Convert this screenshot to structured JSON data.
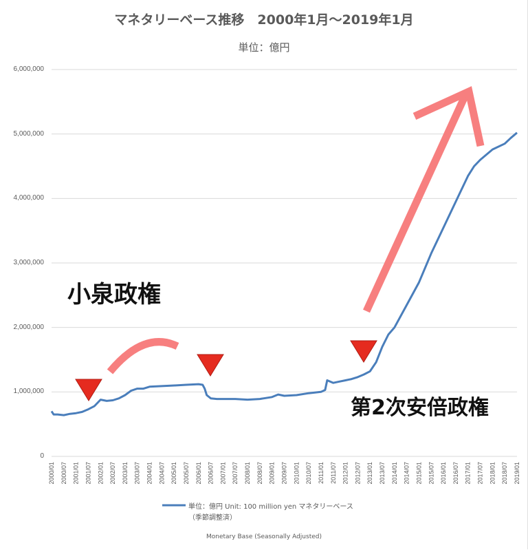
{
  "chart_data": {
    "type": "line",
    "title": "マネタリーベース推移　2000年1月～2019年1月",
    "subtitle": "単位：億円",
    "ylim": [
      0,
      6000000
    ],
    "y_ticks": [
      "0",
      "1,000,000",
      "2,000,000",
      "3,000,000",
      "4,000,000",
      "5,000,000",
      "6,000,000"
    ],
    "x_ticks": [
      "2000/01",
      "2000/07",
      "2001/01",
      "2001/07",
      "2002/01",
      "2002/07",
      "2003/01",
      "2003/07",
      "2004/01",
      "2004/07",
      "2005/01",
      "2005/07",
      "2006/01",
      "2006/07",
      "2007/01",
      "2007/07",
      "2008/01",
      "2008/07",
      "2009/01",
      "2009/07",
      "2010/01",
      "2010/07",
      "2011/01",
      "2011/07",
      "2012/01",
      "2012/07",
      "2013/01",
      "2013/07",
      "2014/01",
      "2014/07",
      "2015/01",
      "2015/07",
      "2016/01",
      "2016/07",
      "2017/01",
      "2017/07",
      "2018/01",
      "2018/07",
      "2019/01"
    ],
    "grid": true,
    "line_color": "#4a7ebb",
    "series": [
      {
        "name": "単位：億円 Unit: 100 million yen マネタリーベース（季節調整済）",
        "x": [
          "2000/01",
          "2000/02",
          "2000/04",
          "2000/07",
          "2000/10",
          "2001/01",
          "2001/04",
          "2001/07",
          "2001/10",
          "2002/01",
          "2002/04",
          "2002/07",
          "2002/10",
          "2003/01",
          "2003/04",
          "2003/07",
          "2003/10",
          "2004/01",
          "2004/07",
          "2005/01",
          "2005/07",
          "2006/01",
          "2006/03",
          "2006/04",
          "2006/05",
          "2006/07",
          "2006/10",
          "2007/01",
          "2007/07",
          "2008/01",
          "2008/07",
          "2009/01",
          "2009/04",
          "2009/07",
          "2010/01",
          "2010/07",
          "2011/01",
          "2011/03",
          "2011/04",
          "2011/07",
          "2011/10",
          "2012/01",
          "2012/04",
          "2012/07",
          "2012/10",
          "2013/01",
          "2013/04",
          "2013/07",
          "2013/10",
          "2014/01",
          "2014/07",
          "2015/01",
          "2015/07",
          "2016/01",
          "2016/07",
          "2017/01",
          "2017/04",
          "2017/07",
          "2018/01",
          "2018/07",
          "2018/10",
          "2019/01"
        ],
        "values": [
          700000,
          650000,
          650000,
          640000,
          660000,
          670000,
          690000,
          730000,
          780000,
          880000,
          860000,
          870000,
          900000,
          950000,
          1020000,
          1050000,
          1050000,
          1080000,
          1090000,
          1100000,
          1110000,
          1120000,
          1110000,
          1050000,
          950000,
          900000,
          890000,
          890000,
          890000,
          880000,
          890000,
          920000,
          960000,
          940000,
          950000,
          980000,
          1000000,
          1030000,
          1180000,
          1140000,
          1160000,
          1180000,
          1200000,
          1230000,
          1270000,
          1320000,
          1460000,
          1700000,
          1890000,
          2000000,
          2350000,
          2700000,
          3150000,
          3550000,
          3950000,
          4350000,
          4500000,
          4600000,
          4760000,
          4850000,
          4940000,
          5020000
        ]
      }
    ],
    "legend_position": "bottom",
    "legend_label": "単位：億円 Unit: 100 million yen マネタリーベース",
    "legend_label2": "（季節調整済）",
    "footer": "Monetary Base   (Seasonally Adjusted)"
  },
  "annotations": {
    "koizumi": "小泉政権",
    "abe": "第2次安倍政権",
    "arrow_color": "#f77f7f",
    "marker_color": "#e52b1f"
  }
}
